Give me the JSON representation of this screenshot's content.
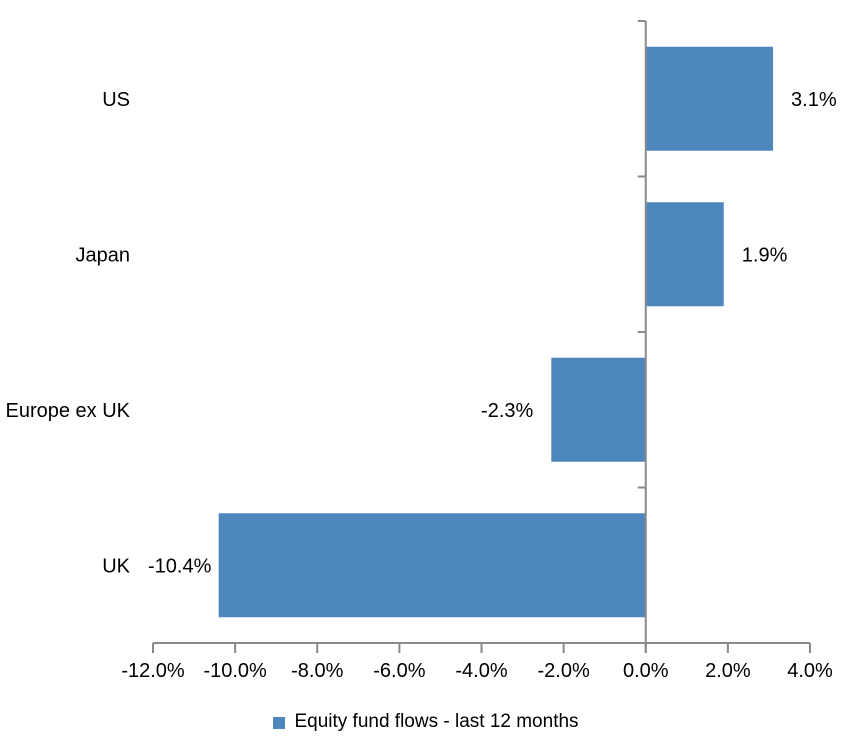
{
  "chart_data": {
    "type": "bar",
    "orientation": "horizontal",
    "title": "",
    "categories": [
      "US",
      "Japan",
      "Europe ex UK",
      "UK"
    ],
    "series": [
      {
        "name": "Equity fund flows - last 12 months",
        "values": [
          3.1,
          1.9,
          -2.3,
          -10.4
        ],
        "data_labels": [
          "3.1%",
          "1.9%",
          "-2.3%",
          "-10.4%"
        ]
      }
    ],
    "x_axis": {
      "min": -12,
      "max": 4,
      "step": 2,
      "tick_labels": [
        "-12.0%",
        "-10.0%",
        "-8.0%",
        "-6.0%",
        "-4.0%",
        "-2.0%",
        "0.0%",
        "2.0%",
        "4.0%"
      ]
    },
    "grid": false,
    "data_label_position": "outside-end",
    "legend": {
      "position": "bottom",
      "label": "Equity fund flows - last 12 months"
    },
    "colors": {
      "bar": "#4E87BE",
      "axis": "#8A8A8A",
      "text": "#000000",
      "background": "#FFFFFF"
    }
  }
}
